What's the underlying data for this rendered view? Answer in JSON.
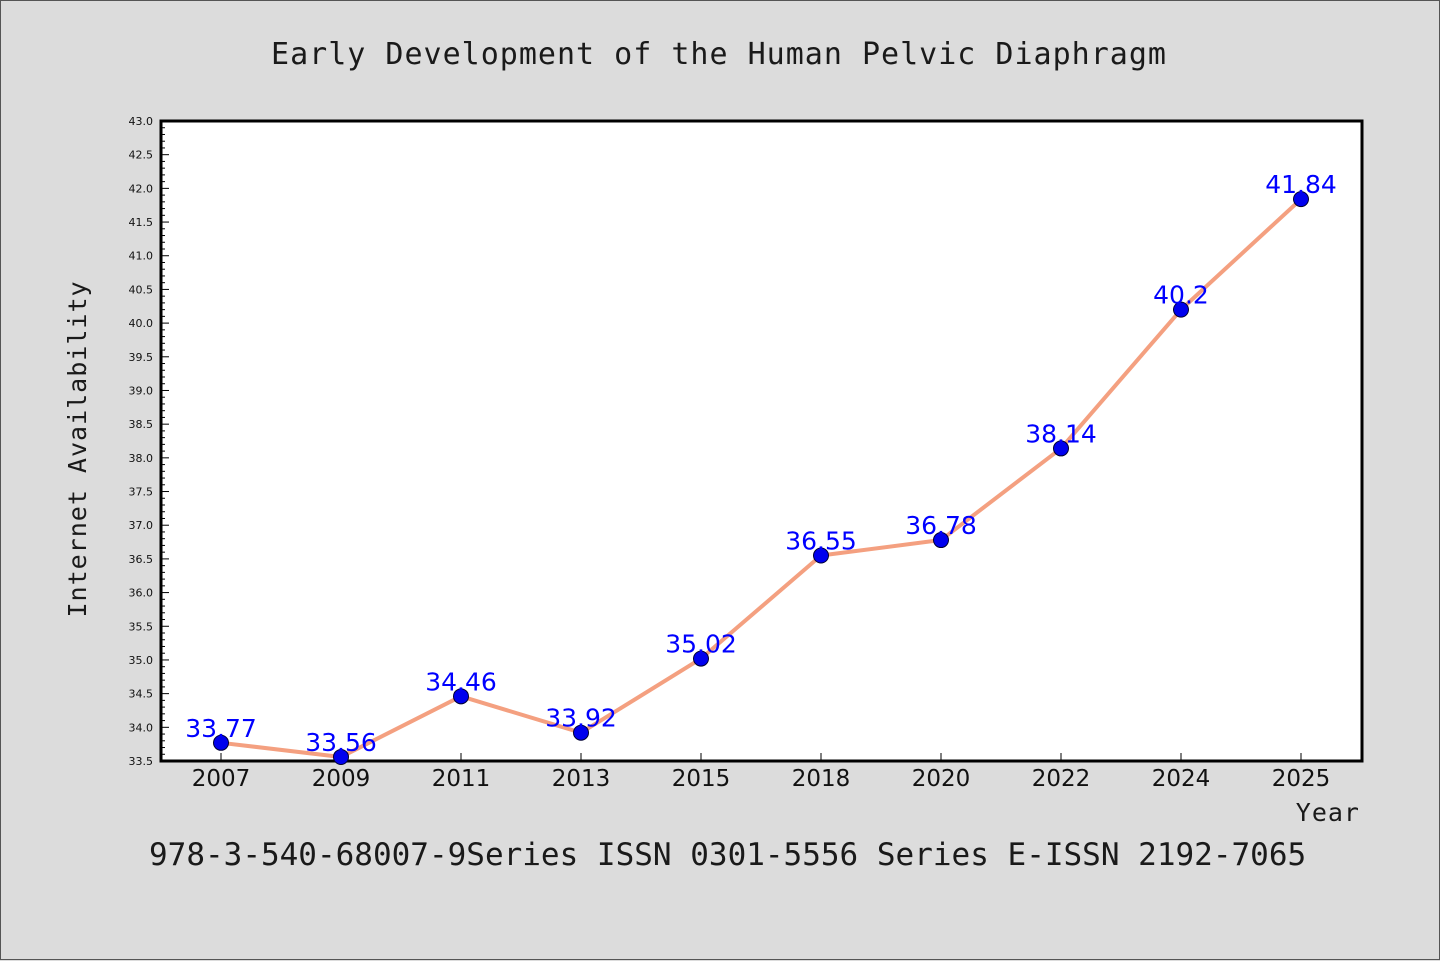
{
  "chart_data": {
    "type": "line",
    "title": "Early Development of the Human Pelvic Diaphragm",
    "xlabel": "Year",
    "ylabel": "Internet Availability",
    "categories": [
      "2007",
      "2009",
      "2011",
      "2013",
      "2015",
      "2018",
      "2020",
      "2022",
      "2024",
      "2025"
    ],
    "series": [
      {
        "values": [
          33.77,
          33.56,
          34.46,
          33.92,
          35.02,
          36.55,
          36.78,
          38.14,
          40.2,
          41.84
        ],
        "data_labels": [
          "33.77",
          "33.56",
          "34.46",
          "33.92",
          "35.02",
          "36.55",
          "36.78",
          "38.14",
          "40.2",
          "41.84"
        ],
        "line_color": "#f4a080",
        "marker_color": "#0000ee"
      }
    ],
    "ylim": [
      33.5,
      43.0
    ],
    "yticks": [
      "33.5",
      "34.0",
      "34.5",
      "35.0",
      "35.5",
      "36.0",
      "36.5",
      "37.0",
      "37.5",
      "38.0",
      "38.5",
      "39.0",
      "39.5",
      "40.0",
      "40.5",
      "41.0",
      "41.5",
      "42.0",
      "42.5",
      "43.0"
    ],
    "grid": false,
    "label_color": "#0000ff"
  },
  "footer": {
    "text": "978-3-540-68007-9Series ISSN 0301-5556 Series E-ISSN 2192-7065"
  },
  "colors": {
    "background": "#dcdcdc",
    "plot_background": "#ffffff"
  }
}
